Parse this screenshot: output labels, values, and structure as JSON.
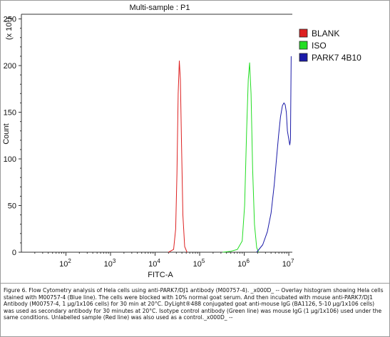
{
  "chart_data": {
    "type": "line",
    "title": "Multi-sample : P1",
    "xlabel": "FITC-A",
    "ylabel": "Count",
    "y_multiplier_label": "(x 10",
    "y_multiplier_exp": "1",
    "y_multiplier_close": ")",
    "xscale": "log",
    "xlim": [
      10,
      12000000
    ],
    "ylim": [
      0,
      255
    ],
    "y_ticks": [
      0,
      50,
      100,
      150,
      200,
      250
    ],
    "x_ticks": [
      {
        "value": 100,
        "base": "10",
        "exp": "2"
      },
      {
        "value": 1000,
        "base": "10",
        "exp": "3"
      },
      {
        "value": 10000,
        "base": "10",
        "exp": "4"
      },
      {
        "value": 100000,
        "base": "10",
        "exp": "5"
      },
      {
        "value": 1000000,
        "base": "10",
        "exp": "6"
      },
      {
        "value": 10000000,
        "base": "10",
        "exp": "7"
      }
    ],
    "legend_position": "top-right",
    "grid": false,
    "series": [
      {
        "name": "BLANK",
        "color": "#dd2020",
        "points": [
          [
            20000,
            0
          ],
          [
            26000,
            3
          ],
          [
            29000,
            25
          ],
          [
            31000,
            85
          ],
          [
            33000,
            170
          ],
          [
            35000,
            205
          ],
          [
            37000,
            185
          ],
          [
            39000,
            120
          ],
          [
            42000,
            40
          ],
          [
            46000,
            6
          ],
          [
            52000,
            0
          ]
        ]
      },
      {
        "name": "ISO",
        "color": "#22dd22",
        "points": [
          [
            330000,
            0
          ],
          [
            500000,
            1
          ],
          [
            700000,
            3
          ],
          [
            900000,
            12
          ],
          [
            1020000,
            50
          ],
          [
            1130000,
            130
          ],
          [
            1230000,
            185
          ],
          [
            1320000,
            203
          ],
          [
            1420000,
            170
          ],
          [
            1540000,
            90
          ],
          [
            1700000,
            30
          ],
          [
            1900000,
            5
          ],
          [
            2100000,
            0
          ]
        ]
      },
      {
        "name": "PARK7 4B10",
        "color": "#1a1aa8",
        "points": [
          [
            1900000,
            0
          ],
          [
            2600000,
            8
          ],
          [
            3300000,
            22
          ],
          [
            4000000,
            42
          ],
          [
            4700000,
            72
          ],
          [
            5300000,
            100
          ],
          [
            5900000,
            125
          ],
          [
            6500000,
            145
          ],
          [
            7200000,
            157
          ],
          [
            7800000,
            160
          ],
          [
            8300000,
            158
          ],
          [
            8800000,
            150
          ],
          [
            9300000,
            130
          ],
          [
            9700000,
            125
          ],
          [
            10100000,
            120
          ],
          [
            10500000,
            115
          ],
          [
            10900000,
            120
          ],
          [
            11300000,
            210
          ]
        ]
      }
    ]
  },
  "caption": {
    "text": "Figure 6. Flow Cytometry analysis of Hela cells using anti-PARK7/DJ1 antibody (M00757-4). _x000D_ -- Overlay histogram showing Hela cells stained with M00757-4 (Blue line). The cells were blocked with 10% normal goat serum. And then incubated with mouse anti-PARK7/DJ1 Antibody (M00757-4, 1 μg/1x106 cells) for 30 min at 20°C. DyLight®488 conjugated goat anti-mouse IgG (BA1126, 5-10 μg/1x106 cells) was used as secondary antibody for 30 minutes at 20°C. Isotype control antibody (Green line) was mouse IgG (1 μg/1x106) used under the same conditions. Unlabelled sample (Red line) was also used as a control._x000D_ --"
  }
}
